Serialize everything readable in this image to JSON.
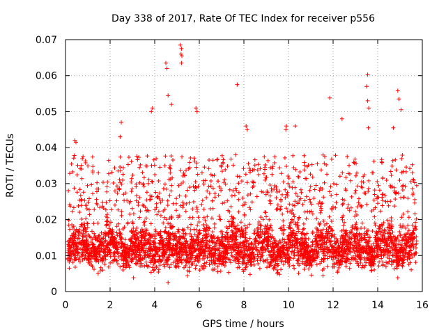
{
  "chart_data": {
    "type": "scatter",
    "title": "Day 338 of 2017, Rate Of TEC Index for receiver p556",
    "xlabel": "GPS time / hours",
    "ylabel": "ROTI / TECUs",
    "xlim": [
      0,
      16
    ],
    "ylim": [
      0,
      0.07
    ],
    "grid": true,
    "marker": "+",
    "color": "#ff0000",
    "x_ticks": [
      0,
      2,
      4,
      6,
      8,
      10,
      12,
      14,
      16
    ],
    "x_tick_labels": [
      "0",
      "2",
      "4",
      "6",
      "8",
      "10",
      "12",
      "14",
      "16"
    ],
    "y_ticks": [
      0,
      0.01,
      0.02,
      0.03,
      0.04,
      0.05,
      0.06,
      0.07
    ],
    "y_tick_labels": [
      "0",
      "0.01",
      "0.02",
      "0.03",
      "0.04",
      "0.05",
      "0.06",
      "0.07"
    ],
    "series": [
      {
        "name": "ROTI",
        "x_start": 0.1,
        "x_end": 15.75,
        "typical_range": [
          0.004,
          0.025
        ],
        "notable_points": [
          {
            "x": 0.42,
            "y": 0.042
          },
          {
            "x": 0.47,
            "y": 0.0415
          },
          {
            "x": 2.5,
            "y": 0.047
          },
          {
            "x": 2.45,
            "y": 0.043
          },
          {
            "x": 3.9,
            "y": 0.051
          },
          {
            "x": 3.85,
            "y": 0.05
          },
          {
            "x": 4.5,
            "y": 0.0635
          },
          {
            "x": 4.55,
            "y": 0.062
          },
          {
            "x": 4.6,
            "y": 0.0545
          },
          {
            "x": 4.75,
            "y": 0.052
          },
          {
            "x": 4.6,
            "y": 0.0025
          },
          {
            "x": 5.15,
            "y": 0.0685
          },
          {
            "x": 5.2,
            "y": 0.0675
          },
          {
            "x": 5.18,
            "y": 0.066
          },
          {
            "x": 5.22,
            "y": 0.0655
          },
          {
            "x": 5.2,
            "y": 0.0635
          },
          {
            "x": 5.85,
            "y": 0.051
          },
          {
            "x": 5.9,
            "y": 0.05
          },
          {
            "x": 7.7,
            "y": 0.0575
          },
          {
            "x": 8.1,
            "y": 0.046
          },
          {
            "x": 8.15,
            "y": 0.045
          },
          {
            "x": 9.9,
            "y": 0.046
          },
          {
            "x": 9.88,
            "y": 0.045
          },
          {
            "x": 10.3,
            "y": 0.046
          },
          {
            "x": 11.85,
            "y": 0.0538
          },
          {
            "x": 12.4,
            "y": 0.048
          },
          {
            "x": 13.55,
            "y": 0.0603
          },
          {
            "x": 13.5,
            "y": 0.057
          },
          {
            "x": 13.55,
            "y": 0.053
          },
          {
            "x": 13.6,
            "y": 0.051
          },
          {
            "x": 13.58,
            "y": 0.0455
          },
          {
            "x": 14.9,
            "y": 0.0558
          },
          {
            "x": 14.95,
            "y": 0.0535
          },
          {
            "x": 15.05,
            "y": 0.0505
          },
          {
            "x": 14.7,
            "y": 0.0455
          },
          {
            "x": 14.9,
            "y": 0.0038
          },
          {
            "x": 3.05,
            "y": 0.0038
          },
          {
            "x": 9.6,
            "y": 0.0048
          }
        ]
      }
    ]
  }
}
